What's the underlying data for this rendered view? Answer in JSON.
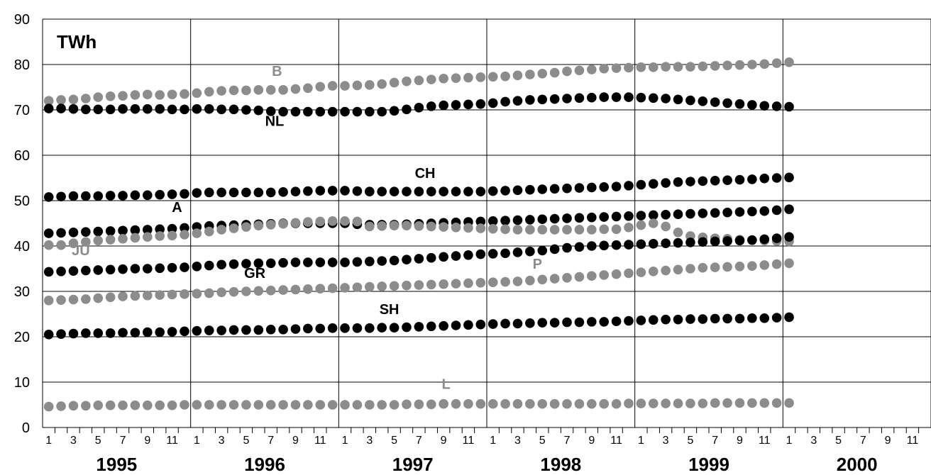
{
  "chart_data": {
    "type": "scatter",
    "unit_label": "TWh",
    "ylim": [
      0,
      90
    ],
    "yticks": [
      0,
      10,
      20,
      30,
      40,
      50,
      60,
      70,
      80,
      90
    ],
    "month_tick_labels": [
      "1",
      "3",
      "5",
      "7",
      "9",
      "11"
    ],
    "years": [
      "1995",
      "1996",
      "1997",
      "1998",
      "1999",
      "2000"
    ],
    "grid": true,
    "x_start_year": 1995,
    "series": [
      {
        "name": "B",
        "color": "#8c8c8c",
        "label": {
          "year": 1996,
          "month": 7.5
        },
        "label_value": 77.5,
        "values": [
          72,
          72.2,
          72.3,
          72.5,
          72.8,
          73,
          73.1,
          73.3,
          73.4,
          73.3,
          73.4,
          73.5,
          73.7,
          74,
          74.2,
          74.3,
          74.3,
          74.4,
          74.4,
          74.4,
          74.6,
          74.8,
          75.1,
          75.3,
          75.3,
          75.4,
          75.5,
          75.7,
          76,
          76.3,
          76.5,
          76.7,
          76.9,
          77,
          77.1,
          77.2,
          77.3,
          77.4,
          77.6,
          77.8,
          78,
          78.2,
          78.5,
          78.7,
          78.9,
          79.1,
          79.2,
          79.3,
          79.4,
          79.4,
          79.5,
          79.5,
          79.5,
          79.6,
          79.7,
          79.8,
          79.9,
          80,
          80.1,
          80.3,
          80.5
        ]
      },
      {
        "name": "NL",
        "color": "#000000",
        "label": {
          "year": 1996,
          "month": 7.3
        },
        "label_value": 66.5,
        "values": [
          70.3,
          70.3,
          70.2,
          70.1,
          70.1,
          70.1,
          70.2,
          70.2,
          70.2,
          70.2,
          70.1,
          70.1,
          70.2,
          70.2,
          70.1,
          70.1,
          70,
          69.9,
          69.7,
          69.6,
          69.6,
          69.6,
          69.6,
          69.6,
          69.6,
          69.6,
          69.6,
          69.6,
          69.8,
          70.1,
          70.5,
          70.8,
          71,
          71.1,
          71.2,
          71.3,
          71.5,
          71.8,
          72,
          72.2,
          72.3,
          72.4,
          72.5,
          72.6,
          72.7,
          72.8,
          72.8,
          72.8,
          72.7,
          72.6,
          72.5,
          72.3,
          72.1,
          71.9,
          71.7,
          71.5,
          71.3,
          71.1,
          70.9,
          70.8,
          70.7
        ]
      },
      {
        "name": "CH",
        "color": "#000000",
        "label": {
          "year": 1997,
          "month": 7.5
        },
        "label_value": 55,
        "values": [
          50.8,
          50.9,
          51,
          51,
          51,
          51.1,
          51.1,
          51.2,
          51.2,
          51.3,
          51.4,
          51.5,
          51.7,
          51.8,
          51.8,
          51.8,
          51.8,
          51.8,
          51.8,
          51.9,
          52,
          52.1,
          52.2,
          52.2,
          52.2,
          52.1,
          52,
          52,
          52,
          52,
          52,
          52,
          52,
          52,
          52,
          52,
          52.1,
          52.2,
          52.3,
          52.4,
          52.5,
          52.6,
          52.7,
          52.8,
          52.9,
          53,
          53.1,
          53.3,
          53.5,
          53.7,
          53.9,
          54.1,
          54.2,
          54.3,
          54.4,
          54.5,
          54.6,
          54.7,
          54.9,
          55,
          55.1
        ]
      },
      {
        "name": "A",
        "color": "#000000",
        "label": {
          "year": 1995,
          "month": 11.4
        },
        "label_value": 47.5,
        "values": [
          42.8,
          42.9,
          43,
          43.1,
          43.2,
          43.3,
          43.4,
          43.5,
          43.6,
          43.7,
          43.8,
          44,
          44.2,
          44.4,
          44.5,
          44.6,
          44.7,
          44.8,
          44.9,
          45,
          45,
          45,
          45,
          45,
          45,
          44.8,
          44.7,
          44.7,
          44.7,
          44.8,
          44.9,
          45,
          45.1,
          45.2,
          45.3,
          45.4,
          45.5,
          45.6,
          45.7,
          45.8,
          45.9,
          46,
          46.1,
          46.2,
          46.3,
          46.4,
          46.5,
          46.6,
          46.7,
          46.8,
          46.9,
          47,
          47.1,
          47.2,
          47.3,
          47.4,
          47.5,
          47.6,
          47.7,
          47.9,
          48.1
        ]
      },
      {
        "name": "JU",
        "color": "#8c8c8c",
        "label": {
          "year": 1995,
          "month": 3.6
        },
        "label_value": 38,
        "values": [
          40.2,
          40.2,
          40.6,
          40.9,
          41.2,
          41.4,
          41.6,
          41.8,
          42,
          42.2,
          42.3,
          42.5,
          42.8,
          43.2,
          43.6,
          43.9,
          44.2,
          44.5,
          44.7,
          44.9,
          45.1,
          45.3,
          45.4,
          45.5,
          45.5,
          45.4,
          44.3,
          44.4,
          44.5,
          44.5,
          44.4,
          44.3,
          44.2,
          44.1,
          44,
          43.9,
          43.8,
          43.7,
          43.6,
          43.6,
          43.6,
          43.6,
          43.6,
          43.6,
          43.6,
          43.7,
          43.7,
          44.1,
          44.6,
          45,
          44.3,
          43,
          42.2,
          41.9,
          41.7,
          41.6,
          41.4,
          41.3,
          41.2,
          41.1,
          41
        ]
      },
      {
        "name": "GR",
        "color": "#000000",
        "label": {
          "year": 1996,
          "month": 5.7
        },
        "label_value": 33,
        "values": [
          34.3,
          34.4,
          34.5,
          34.6,
          34.7,
          34.8,
          34.9,
          35,
          35,
          35.1,
          35.2,
          35.3,
          35.5,
          35.7,
          35.9,
          36,
          36.1,
          36.2,
          36.2,
          36.3,
          36.4,
          36.4,
          36.4,
          36.4,
          36.4,
          36.5,
          36.6,
          36.7,
          36.8,
          37,
          37.2,
          37.4,
          37.6,
          37.8,
          38,
          38.2,
          38.3,
          38.4,
          38.6,
          38.8,
          39,
          39.3,
          39.6,
          39.8,
          40,
          40.1,
          40.2,
          40.3,
          40.4,
          40.5,
          40.6,
          40.7,
          40.8,
          40.9,
          41,
          41.1,
          41.2,
          41.3,
          41.5,
          41.7,
          42
        ]
      },
      {
        "name": "P",
        "color": "#8c8c8c",
        "label": {
          "year": 1998,
          "month": 4.6
        },
        "label_value": 35,
        "values": [
          28,
          28.1,
          28.2,
          28.3,
          28.5,
          28.7,
          28.9,
          29,
          29.1,
          29.2,
          29.3,
          29.4,
          29.5,
          29.6,
          29.8,
          29.9,
          30,
          30.1,
          30.2,
          30.3,
          30.4,
          30.5,
          30.6,
          30.7,
          30.8,
          30.9,
          31,
          31.1,
          31.2,
          31.3,
          31.4,
          31.5,
          31.6,
          31.7,
          31.8,
          31.9,
          32,
          32.1,
          32.2,
          32.4,
          32.6,
          32.8,
          33,
          33.2,
          33.4,
          33.6,
          33.8,
          34,
          34.2,
          34.4,
          34.6,
          34.8,
          35,
          35.2,
          35.3,
          35.4,
          35.5,
          35.6,
          35.8,
          36,
          36.2
        ]
      },
      {
        "name": "SH",
        "color": "#000000",
        "label": {
          "year": 1997,
          "month": 4.6
        },
        "label_value": 25,
        "values": [
          20.5,
          20.6,
          20.7,
          20.8,
          20.8,
          20.8,
          20.9,
          20.9,
          21,
          21,
          21.1,
          21.2,
          21.3,
          21.4,
          21.4,
          21.5,
          21.5,
          21.5,
          21.6,
          21.6,
          21.7,
          21.8,
          21.8,
          21.9,
          21.9,
          21.9,
          21.9,
          22,
          22,
          22.1,
          22.2,
          22.3,
          22.4,
          22.5,
          22.6,
          22.7,
          22.8,
          22.9,
          22.9,
          23,
          23.1,
          23.1,
          23.2,
          23.2,
          23.3,
          23.3,
          23.4,
          23.5,
          23.6,
          23.7,
          23.8,
          23.8,
          23.9,
          23.9,
          24,
          24,
          24,
          24.1,
          24.1,
          24.2,
          24.3
        ]
      },
      {
        "name": "L",
        "color": "#8c8c8c",
        "label": {
          "year": 1997,
          "month": 9.2
        },
        "label_value": 8.5,
        "values": [
          4.6,
          4.7,
          4.8,
          4.8,
          4.9,
          4.9,
          4.9,
          4.9,
          4.9,
          4.9,
          4.9,
          5,
          5,
          5,
          5,
          5,
          5,
          5,
          5,
          5,
          5,
          5,
          5,
          5,
          5,
          5,
          5,
          5,
          5,
          5.1,
          5.1,
          5.1,
          5.2,
          5.2,
          5.2,
          5.2,
          5.2,
          5.2,
          5.2,
          5.2,
          5.2,
          5.2,
          5.2,
          5.2,
          5.2,
          5.2,
          5.2,
          5.3,
          5.3,
          5.3,
          5.3,
          5.3,
          5.3,
          5.3,
          5.4,
          5.4,
          5.4,
          5.4,
          5.4,
          5.4,
          5.4
        ]
      }
    ]
  }
}
